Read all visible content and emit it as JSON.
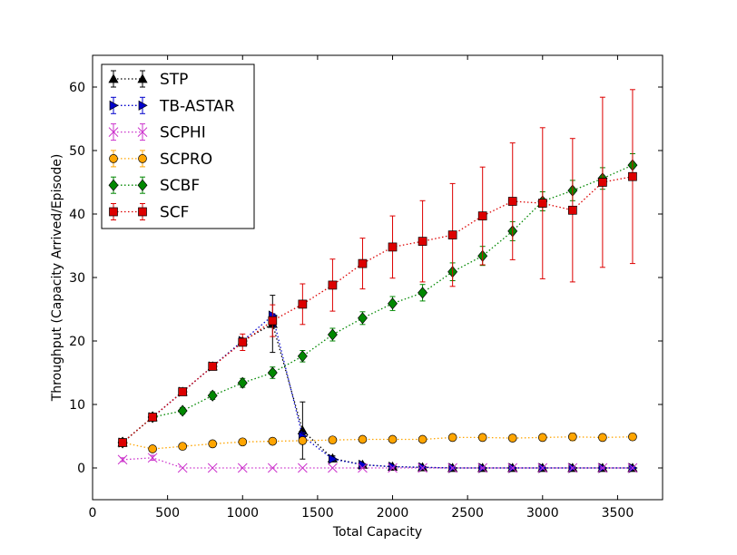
{
  "chart_data": {
    "type": "line",
    "title": "",
    "xlabel": "Total Capacity",
    "ylabel": "Throughput (Capacity Arrived/Episode)",
    "xlim": [
      0,
      3800
    ],
    "ylim": [
      -5,
      65
    ],
    "xticks": [
      0,
      500,
      1000,
      1500,
      2000,
      2500,
      3000,
      3500
    ],
    "yticks": [
      0,
      10,
      20,
      30,
      40,
      50,
      60
    ],
    "grid": false,
    "legend_position": "top-left",
    "series": [
      {
        "name": "STP",
        "color": "#000000",
        "marker": "triangle-up",
        "x": [
          200,
          400,
          600,
          800,
          1000,
          1200,
          1400,
          1600,
          1800,
          2000,
          2200,
          2400,
          2600,
          2800,
          3000,
          3200,
          3400,
          3600
        ],
        "y": [
          4,
          8,
          12,
          16,
          20,
          22.7,
          5.9,
          1.5,
          0.5,
          0.2,
          0.1,
          0,
          0,
          0,
          0,
          0,
          0,
          0
        ],
        "err": [
          0.3,
          0.3,
          0.3,
          0.3,
          0.3,
          4.5,
          4.5,
          0.4,
          0.2,
          0.1,
          0.1,
          0,
          0,
          0,
          0,
          0,
          0,
          0
        ]
      },
      {
        "name": "TB-ASTAR",
        "color": "#0000cc",
        "marker": "triangle-right",
        "x": [
          200,
          400,
          600,
          800,
          1000,
          1200,
          1400,
          1600,
          1800,
          2000,
          2200,
          2400,
          2600,
          2800,
          3000,
          3200,
          3400,
          3600
        ],
        "y": [
          4,
          8,
          12,
          16,
          20,
          24,
          5,
          1.4,
          0.5,
          0.2,
          0.1,
          0,
          0,
          0,
          0,
          0,
          0,
          0
        ],
        "err": [
          0.2,
          0.2,
          0.2,
          0.2,
          0.2,
          0.3,
          0.5,
          0.3,
          0.1,
          0.1,
          0.1,
          0,
          0,
          0,
          0,
          0,
          0,
          0
        ]
      },
      {
        "name": "SCPHI",
        "color": "#cc33cc",
        "marker": "x",
        "x": [
          200,
          400,
          600,
          800,
          1000,
          1200,
          1400,
          1600,
          1800,
          2000,
          2200,
          2400,
          2600,
          2800,
          3000,
          3200,
          3400,
          3600
        ],
        "y": [
          1.3,
          1.6,
          0,
          0,
          0,
          0,
          0,
          0,
          0,
          0,
          0,
          0,
          0,
          0,
          0,
          0,
          0,
          0
        ],
        "err": [
          0.3,
          0.4,
          0,
          0,
          0,
          0,
          0,
          0,
          0,
          0,
          0,
          0,
          0,
          0,
          0,
          0,
          0,
          0
        ]
      },
      {
        "name": "SCPRO",
        "color": "#ffa500",
        "marker": "circle",
        "x": [
          200,
          400,
          600,
          800,
          1000,
          1200,
          1400,
          1600,
          1800,
          2000,
          2200,
          2400,
          2600,
          2800,
          3000,
          3200,
          3400,
          3600
        ],
        "y": [
          4,
          3,
          3.4,
          3.8,
          4.1,
          4.2,
          4.3,
          4.4,
          4.5,
          4.5,
          4.5,
          4.8,
          4.8,
          4.7,
          4.8,
          4.9,
          4.8,
          4.9
        ],
        "err": [
          0.3,
          0.3,
          0.3,
          0.3,
          0.3,
          0.3,
          0.3,
          0.4,
          0.4,
          0.4,
          0.4,
          0.5,
          0.5,
          0.5,
          0.5,
          0.6,
          0.5,
          0.5
        ]
      },
      {
        "name": "SCBF",
        "color": "#008800",
        "marker": "diamond",
        "x": [
          200,
          400,
          600,
          800,
          1000,
          1200,
          1400,
          1600,
          1800,
          2000,
          2200,
          2400,
          2600,
          2800,
          3000,
          3200,
          3400,
          3600
        ],
        "y": [
          4,
          8,
          9,
          11.4,
          13.4,
          15,
          17.6,
          21,
          23.6,
          25.9,
          27.6,
          30.9,
          33.4,
          37.3,
          42,
          43.7,
          45.6,
          47.7
        ],
        "err": [
          0.3,
          0.4,
          0.5,
          0.6,
          0.7,
          0.9,
          0.9,
          1.0,
          1.0,
          1.1,
          1.3,
          1.4,
          1.5,
          1.5,
          1.5,
          1.6,
          1.7,
          1.8
        ]
      },
      {
        "name": "SCF",
        "color": "#dd0000",
        "marker": "square",
        "x": [
          200,
          400,
          600,
          800,
          1000,
          1200,
          1400,
          1600,
          1800,
          2000,
          2200,
          2400,
          2600,
          2800,
          3000,
          3200,
          3400,
          3600
        ],
        "y": [
          4,
          8,
          12,
          16,
          19.8,
          23.2,
          25.8,
          28.8,
          32.2,
          34.8,
          35.7,
          36.7,
          39.7,
          42,
          41.7,
          40.6,
          45,
          45.9
        ],
        "err": [
          0.3,
          0.3,
          0.3,
          0.3,
          1.3,
          2.5,
          3.2,
          4.1,
          4.0,
          4.9,
          6.4,
          8.1,
          7.7,
          9.2,
          11.9,
          11.3,
          13.4,
          13.7
        ]
      }
    ]
  }
}
